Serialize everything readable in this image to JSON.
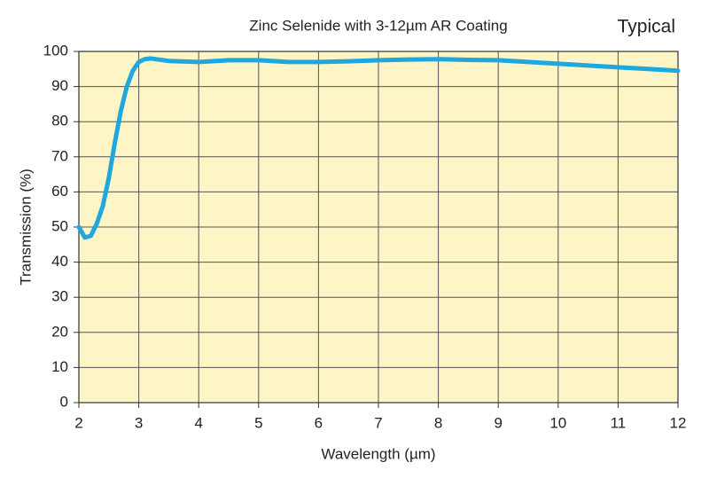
{
  "chart_data": {
    "type": "line",
    "title": "Zinc Selenide with 3-12µm AR Coating",
    "annotation": "Typical",
    "x_label": "Wavelength (µm)",
    "y_label": "Transmission (%)",
    "xlim": [
      2,
      12
    ],
    "ylim": [
      0,
      100
    ],
    "xticks": [
      2,
      3,
      4,
      5,
      6,
      7,
      8,
      9,
      10,
      11,
      12
    ],
    "yticks": [
      0,
      10,
      20,
      30,
      40,
      50,
      60,
      70,
      80,
      90,
      100
    ],
    "grid": true,
    "plot_background": "#fdf5c6",
    "series": [
      {
        "color": "#1fa7e0",
        "x": [
          2.0,
          2.1,
          2.2,
          2.3,
          2.4,
          2.5,
          2.6,
          2.7,
          2.8,
          2.9,
          3.0,
          3.1,
          3.2,
          3.5,
          4.0,
          4.5,
          5.0,
          5.5,
          6.0,
          6.5,
          7.0,
          7.5,
          8.0,
          8.5,
          9.0,
          9.5,
          10.0,
          10.5,
          11.0,
          11.5,
          12.0
        ],
        "values": [
          50,
          47,
          47.5,
          51,
          56,
          64,
          74,
          83,
          90,
          94.5,
          97,
          97.8,
          98,
          97.3,
          97,
          97.5,
          97.5,
          97,
          97,
          97.2,
          97.5,
          97.7,
          97.8,
          97.6,
          97.5,
          97,
          96.5,
          96,
          95.5,
          95,
          94.5
        ]
      }
    ]
  }
}
